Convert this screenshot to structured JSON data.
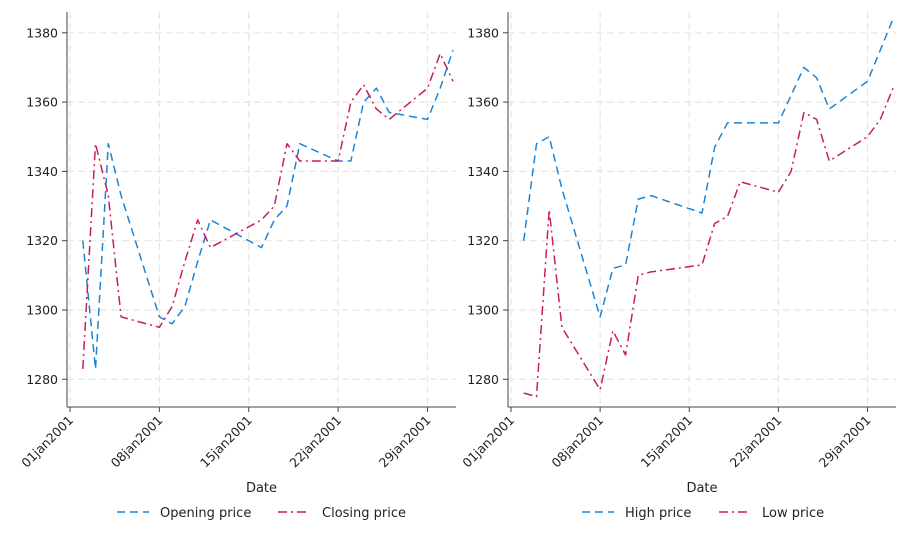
{
  "chart_data": [
    {
      "type": "line",
      "xlabel": "Date",
      "ylabel": "",
      "ylim": [
        1272,
        1386
      ],
      "yticks": [
        1280,
        1300,
        1320,
        1340,
        1360,
        1380
      ],
      "xticks": [
        "01jan2001",
        "08jan2001",
        "15jan2001",
        "22jan2001",
        "29jan2001"
      ],
      "xlim": [
        "2001-01-01",
        "2001-01-31"
      ],
      "grid": true,
      "legend": "bottom",
      "x": [
        "2001-01-02",
        "2001-01-03",
        "2001-01-04",
        "2001-01-05",
        "2001-01-08",
        "2001-01-09",
        "2001-01-10",
        "2001-01-11",
        "2001-01-12",
        "2001-01-16",
        "2001-01-17",
        "2001-01-18",
        "2001-01-19",
        "2001-01-22",
        "2001-01-23",
        "2001-01-24",
        "2001-01-25",
        "2001-01-26",
        "2001-01-29",
        "2001-01-30",
        "2001-01-31"
      ],
      "series": [
        {
          "name": "Opening price",
          "color": "#1a85d6",
          "dash": "8,5",
          "values": [
            1320,
            1283,
            1348,
            1333,
            1298,
            1296,
            1301,
            1314,
            1326,
            1318,
            1326,
            1330,
            1348,
            1343,
            1343,
            1360,
            1364,
            1357,
            1355,
            1364,
            1375
          ]
        },
        {
          "name": "Closing price",
          "color": "#c81e5a",
          "dash": "9,4,2,4",
          "values": [
            1283,
            1348,
            1333,
            1298,
            1295,
            1301,
            1314,
            1326,
            1318,
            1326,
            1330,
            1348,
            1343,
            1343,
            1360,
            1365,
            1358,
            1355,
            1364,
            1374,
            1366
          ]
        }
      ]
    },
    {
      "type": "line",
      "xlabel": "Date",
      "ylabel": "",
      "ylim": [
        1272,
        1386
      ],
      "yticks": [
        1280,
        1300,
        1320,
        1340,
        1360,
        1380
      ],
      "xticks": [
        "01jan2001",
        "08jan2001",
        "15jan2001",
        "22jan2001",
        "29jan2001"
      ],
      "xlim": [
        "2001-01-01",
        "2001-01-31"
      ],
      "grid": true,
      "legend": "bottom",
      "x": [
        "2001-01-02",
        "2001-01-03",
        "2001-01-04",
        "2001-01-05",
        "2001-01-08",
        "2001-01-09",
        "2001-01-10",
        "2001-01-11",
        "2001-01-12",
        "2001-01-16",
        "2001-01-17",
        "2001-01-18",
        "2001-01-19",
        "2001-01-22",
        "2001-01-23",
        "2001-01-24",
        "2001-01-25",
        "2001-01-26",
        "2001-01-29",
        "2001-01-30",
        "2001-01-31"
      ],
      "series": [
        {
          "name": "High price",
          "color": "#1a85d6",
          "dash": "8,5",
          "values": [
            1320,
            1348,
            1350,
            1335,
            1298,
            1312,
            1313,
            1332,
            1333,
            1328,
            1347,
            1354,
            1354,
            1354,
            1362,
            1370,
            1367,
            1358,
            1366,
            1375,
            1384
          ]
        },
        {
          "name": "Low price",
          "color": "#c81e5a",
          "dash": "9,4,2,4",
          "values": [
            1276,
            1275,
            1329,
            1295,
            1277,
            1294,
            1287,
            1310,
            1311,
            1313,
            1325,
            1327,
            1337,
            1334,
            1340,
            1357,
            1355,
            1343,
            1350,
            1355,
            1364
          ]
        }
      ]
    }
  ]
}
